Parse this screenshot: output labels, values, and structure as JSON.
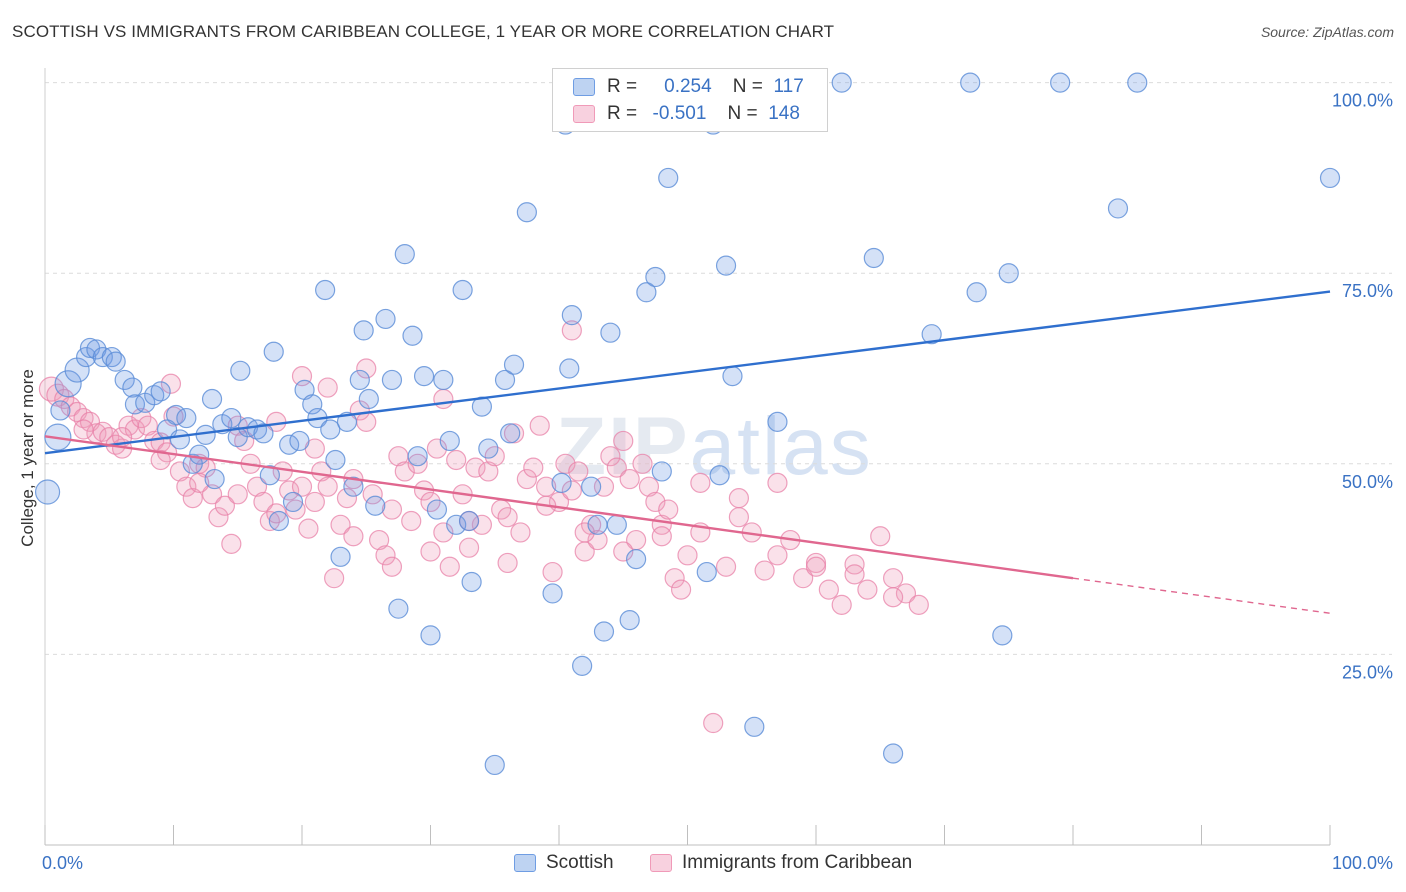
{
  "title": "SCOTTISH VS IMMIGRANTS FROM CARIBBEAN COLLEGE, 1 YEAR OR MORE CORRELATION CHART",
  "source": "Source: ZipAtlas.com",
  "watermark": {
    "zip": "ZIP",
    "atlas": "atlas"
  },
  "legend": {
    "rows": [
      {
        "r_label": "R =",
        "r_value": "0.254",
        "n_label": "N =",
        "n_value": "117"
      },
      {
        "r_label": "R =",
        "r_value": "-0.501",
        "n_label": "N =",
        "n_value": "148"
      }
    ]
  },
  "colors": {
    "scottish": "#6f9de3",
    "caribbean": "#f09ab8",
    "scottish_line": "#2f6fce",
    "caribbean_line": "#e0678f",
    "tick_label": "#3a72c4"
  },
  "chart_data": {
    "type": "scatter",
    "title": "SCOTTISH VS IMMIGRANTS FROM CARIBBEAN COLLEGE, 1 YEAR OR MORE CORRELATION CHART",
    "xlabel": "",
    "ylabel": "College, 1 year or more",
    "xlim": [
      0,
      100
    ],
    "ylim": [
      0,
      101
    ],
    "x_ticks": [
      "0.0%",
      "100.0%"
    ],
    "y_ticks": [
      {
        "value": 25,
        "label": "25.0%"
      },
      {
        "value": 50,
        "label": "50.0%"
      },
      {
        "value": 75,
        "label": "75.0%"
      },
      {
        "value": 100,
        "label": "100.0%"
      }
    ],
    "grid": true,
    "legend_position": "bottom",
    "series": [
      {
        "name": "Scottish",
        "r": 0.254,
        "n": 117,
        "trend": {
          "x": [
            0,
            100
          ],
          "y": [
            51.4,
            72.6
          ]
        },
        "points": [
          [
            0.2,
            46.3
          ],
          [
            1.0,
            53.5
          ],
          [
            1.2,
            57.0
          ],
          [
            1.8,
            60.5
          ],
          [
            2.5,
            62.3
          ],
          [
            3.2,
            64.0
          ],
          [
            3.5,
            65.2
          ],
          [
            4.0,
            65.0
          ],
          [
            4.5,
            64.0
          ],
          [
            5.2,
            64.0
          ],
          [
            5.5,
            63.4
          ],
          [
            6.2,
            61.0
          ],
          [
            6.8,
            60.0
          ],
          [
            7.0,
            57.8
          ],
          [
            7.8,
            58.0
          ],
          [
            8.5,
            59.0
          ],
          [
            9.0,
            59.5
          ],
          [
            9.5,
            54.5
          ],
          [
            10.2,
            56.4
          ],
          [
            10.5,
            53.2
          ],
          [
            11.0,
            56.0
          ],
          [
            11.5,
            50.0
          ],
          [
            12.0,
            51.2
          ],
          [
            12.5,
            53.8
          ],
          [
            13.0,
            58.5
          ],
          [
            13.2,
            48.0
          ],
          [
            13.8,
            55.2
          ],
          [
            14.5,
            56.0
          ],
          [
            15.0,
            53.5
          ],
          [
            15.2,
            62.2
          ],
          [
            15.8,
            54.8
          ],
          [
            16.5,
            54.5
          ],
          [
            17.0,
            54.0
          ],
          [
            17.5,
            48.5
          ],
          [
            17.8,
            64.7
          ],
          [
            18.2,
            42.5
          ],
          [
            19.0,
            52.5
          ],
          [
            19.3,
            45.0
          ],
          [
            19.8,
            53.0
          ],
          [
            20.2,
            59.7
          ],
          [
            20.8,
            57.8
          ],
          [
            21.2,
            56.0
          ],
          [
            21.8,
            72.8
          ],
          [
            22.2,
            54.5
          ],
          [
            22.6,
            50.5
          ],
          [
            23.0,
            37.8
          ],
          [
            23.5,
            55.5
          ],
          [
            24.0,
            47.0
          ],
          [
            24.5,
            61.0
          ],
          [
            24.8,
            67.5
          ],
          [
            25.2,
            58.5
          ],
          [
            25.7,
            44.5
          ],
          [
            26.5,
            69.0
          ],
          [
            27.0,
            61.0
          ],
          [
            27.5,
            31.0
          ],
          [
            28.0,
            77.5
          ],
          [
            28.6,
            66.8
          ],
          [
            29.0,
            51.0
          ],
          [
            29.5,
            61.5
          ],
          [
            30.0,
            27.5
          ],
          [
            30.5,
            44.0
          ],
          [
            31.0,
            61.0
          ],
          [
            31.5,
            53.0
          ],
          [
            32.0,
            42.0
          ],
          [
            32.5,
            72.8
          ],
          [
            33.0,
            42.5
          ],
          [
            33.2,
            34.5
          ],
          [
            34.0,
            57.5
          ],
          [
            34.5,
            52.0
          ],
          [
            35.0,
            10.5
          ],
          [
            35.8,
            61.0
          ],
          [
            36.2,
            54.0
          ],
          [
            36.5,
            63.0
          ],
          [
            37.5,
            83.0
          ],
          [
            39.5,
            33.0
          ],
          [
            40.2,
            47.5
          ],
          [
            40.5,
            94.5
          ],
          [
            40.8,
            62.5
          ],
          [
            41.0,
            69.5
          ],
          [
            41.8,
            23.5
          ],
          [
            42.5,
            47.0
          ],
          [
            43.0,
            42.0
          ],
          [
            43.5,
            28.0
          ],
          [
            44.0,
            67.2
          ],
          [
            44.5,
            42.0
          ],
          [
            45.5,
            29.5
          ],
          [
            46.0,
            37.5
          ],
          [
            46.8,
            72.5
          ],
          [
            47.5,
            74.5
          ],
          [
            48.0,
            49.0
          ],
          [
            48.5,
            87.5
          ],
          [
            51.5,
            35.8
          ],
          [
            52.0,
            94.5
          ],
          [
            52.5,
            48.5
          ],
          [
            53.0,
            76.0
          ],
          [
            53.5,
            61.5
          ],
          [
            55.2,
            15.5
          ],
          [
            57.0,
            55.5
          ],
          [
            59.0,
            100.0
          ],
          [
            59.5,
            100.0
          ],
          [
            62.0,
            100.0
          ],
          [
            64.5,
            77.0
          ],
          [
            66.0,
            12.0
          ],
          [
            69.0,
            67.0
          ],
          [
            72.0,
            100.0
          ],
          [
            72.5,
            72.5
          ],
          [
            74.5,
            27.5
          ],
          [
            75.0,
            75.0
          ],
          [
            79.0,
            100.0
          ],
          [
            83.5,
            83.5
          ],
          [
            85.0,
            100.0
          ],
          [
            100.0,
            87.5
          ]
        ]
      },
      {
        "name": "Immigrants from Caribbean",
        "r": -0.501,
        "n": 148,
        "trend": {
          "x": [
            0,
            80
          ],
          "y": [
            53.6,
            35.0
          ]
        },
        "trend_dashed": {
          "x": [
            80,
            100
          ],
          "y": [
            35.0,
            30.4
          ]
        },
        "points": [
          [
            0.5,
            59.8
          ],
          [
            1.0,
            59.0
          ],
          [
            1.5,
            58.5
          ],
          [
            2.0,
            57.5
          ],
          [
            2.5,
            56.8
          ],
          [
            3.0,
            56.0
          ],
          [
            3.5,
            55.5
          ],
          [
            4.0,
            54.0
          ],
          [
            4.5,
            54.2
          ],
          [
            5.0,
            53.5
          ],
          [
            5.5,
            52.5
          ],
          [
            6.0,
            52.0
          ],
          [
            6.5,
            55.0
          ],
          [
            7.0,
            54.5
          ],
          [
            7.5,
            56.0
          ],
          [
            8.0,
            55.0
          ],
          [
            8.5,
            53.0
          ],
          [
            9.0,
            52.8
          ],
          [
            9.5,
            51.5
          ],
          [
            9.8,
            60.5
          ],
          [
            10.0,
            56.2
          ],
          [
            10.5,
            49.0
          ],
          [
            11.0,
            47.0
          ],
          [
            11.5,
            45.5
          ],
          [
            12.0,
            50.0
          ],
          [
            12.5,
            49.5
          ],
          [
            13.0,
            46.0
          ],
          [
            13.5,
            43.0
          ],
          [
            14.0,
            44.5
          ],
          [
            14.5,
            39.5
          ],
          [
            15.0,
            55.0
          ],
          [
            15.5,
            53.0
          ],
          [
            16.0,
            50.0
          ],
          [
            16.5,
            47.0
          ],
          [
            17.0,
            45.0
          ],
          [
            17.5,
            42.5
          ],
          [
            18.0,
            55.5
          ],
          [
            18.5,
            49.0
          ],
          [
            19.0,
            46.5
          ],
          [
            19.5,
            44.0
          ],
          [
            20.0,
            47.0
          ],
          [
            20.5,
            41.5
          ],
          [
            21.0,
            52.0
          ],
          [
            21.5,
            49.0
          ],
          [
            22.0,
            47.0
          ],
          [
            22.5,
            35.0
          ],
          [
            23.0,
            42.0
          ],
          [
            23.5,
            45.5
          ],
          [
            24.0,
            48.0
          ],
          [
            24.5,
            57.0
          ],
          [
            25.0,
            55.5
          ],
          [
            25.5,
            46.0
          ],
          [
            26.0,
            40.0
          ],
          [
            26.5,
            38.0
          ],
          [
            27.0,
            44.0
          ],
          [
            27.5,
            51.0
          ],
          [
            28.0,
            49.0
          ],
          [
            28.5,
            42.5
          ],
          [
            29.0,
            50.0
          ],
          [
            29.5,
            46.5
          ],
          [
            30.0,
            38.5
          ],
          [
            30.5,
            52.0
          ],
          [
            31.0,
            41.0
          ],
          [
            31.5,
            36.5
          ],
          [
            32.0,
            50.5
          ],
          [
            32.5,
            46.0
          ],
          [
            33.0,
            39.0
          ],
          [
            33.5,
            49.5
          ],
          [
            34.0,
            42.0
          ],
          [
            34.5,
            49.0
          ],
          [
            35.0,
            51.0
          ],
          [
            35.5,
            44.0
          ],
          [
            36.0,
            37.0
          ],
          [
            36.5,
            54.0
          ],
          [
            37.0,
            41.0
          ],
          [
            37.5,
            48.0
          ],
          [
            38.0,
            49.5
          ],
          [
            38.5,
            55.0
          ],
          [
            39.0,
            47.0
          ],
          [
            39.5,
            35.8
          ],
          [
            40.0,
            45.0
          ],
          [
            40.5,
            50.0
          ],
          [
            41.0,
            46.5
          ],
          [
            41.5,
            49.0
          ],
          [
            42.0,
            38.5
          ],
          [
            42.5,
            42.0
          ],
          [
            43.0,
            40.0
          ],
          [
            43.5,
            47.0
          ],
          [
            44.0,
            51.0
          ],
          [
            44.5,
            49.5
          ],
          [
            45.0,
            53.0
          ],
          [
            45.5,
            48.0
          ],
          [
            46.0,
            40.0
          ],
          [
            46.5,
            50.0
          ],
          [
            47.0,
            47.0
          ],
          [
            47.5,
            45.0
          ],
          [
            48.0,
            42.0
          ],
          [
            48.5,
            44.0
          ],
          [
            49.0,
            35.0
          ],
          [
            49.5,
            33.5
          ],
          [
            50.0,
            38.0
          ],
          [
            51.0,
            41.0
          ],
          [
            52.0,
            16.0
          ],
          [
            53.0,
            36.5
          ],
          [
            54.0,
            45.5
          ],
          [
            55.0,
            41.0
          ],
          [
            56.0,
            36.0
          ],
          [
            57.0,
            47.5
          ],
          [
            58.0,
            40.0
          ],
          [
            59.0,
            35.0
          ],
          [
            60.0,
            37.0
          ],
          [
            61.0,
            33.5
          ],
          [
            62.0,
            31.5
          ],
          [
            63.0,
            36.8
          ],
          [
            64.0,
            33.5
          ],
          [
            65.0,
            40.5
          ],
          [
            66.0,
            35.0
          ],
          [
            67.0,
            33.0
          ],
          [
            68.0,
            31.5
          ],
          [
            3.0,
            54.5
          ],
          [
            6.0,
            53.5
          ],
          [
            9.0,
            50.5
          ],
          [
            12.0,
            47.5
          ],
          [
            15.0,
            46.0
          ],
          [
            18.0,
            43.5
          ],
          [
            21.0,
            45.0
          ],
          [
            24.0,
            40.5
          ],
          [
            27.0,
            36.5
          ],
          [
            30.0,
            45.0
          ],
          [
            33.0,
            42.5
          ],
          [
            36.0,
            43.0
          ],
          [
            39.0,
            44.5
          ],
          [
            42.0,
            41.0
          ],
          [
            45.0,
            38.5
          ],
          [
            48.0,
            40.5
          ],
          [
            51.0,
            47.5
          ],
          [
            54.0,
            43.0
          ],
          [
            57.0,
            38.0
          ],
          [
            60.0,
            36.5
          ],
          [
            63.0,
            35.5
          ],
          [
            66.0,
            32.5
          ],
          [
            20.0,
            61.5
          ],
          [
            22.0,
            60.0
          ],
          [
            25.0,
            62.5
          ],
          [
            31.0,
            58.5
          ],
          [
            41.0,
            67.5
          ]
        ]
      }
    ]
  },
  "bottom_legend": [
    {
      "label": "Scottish"
    },
    {
      "label": "Immigrants from Caribbean"
    }
  ]
}
